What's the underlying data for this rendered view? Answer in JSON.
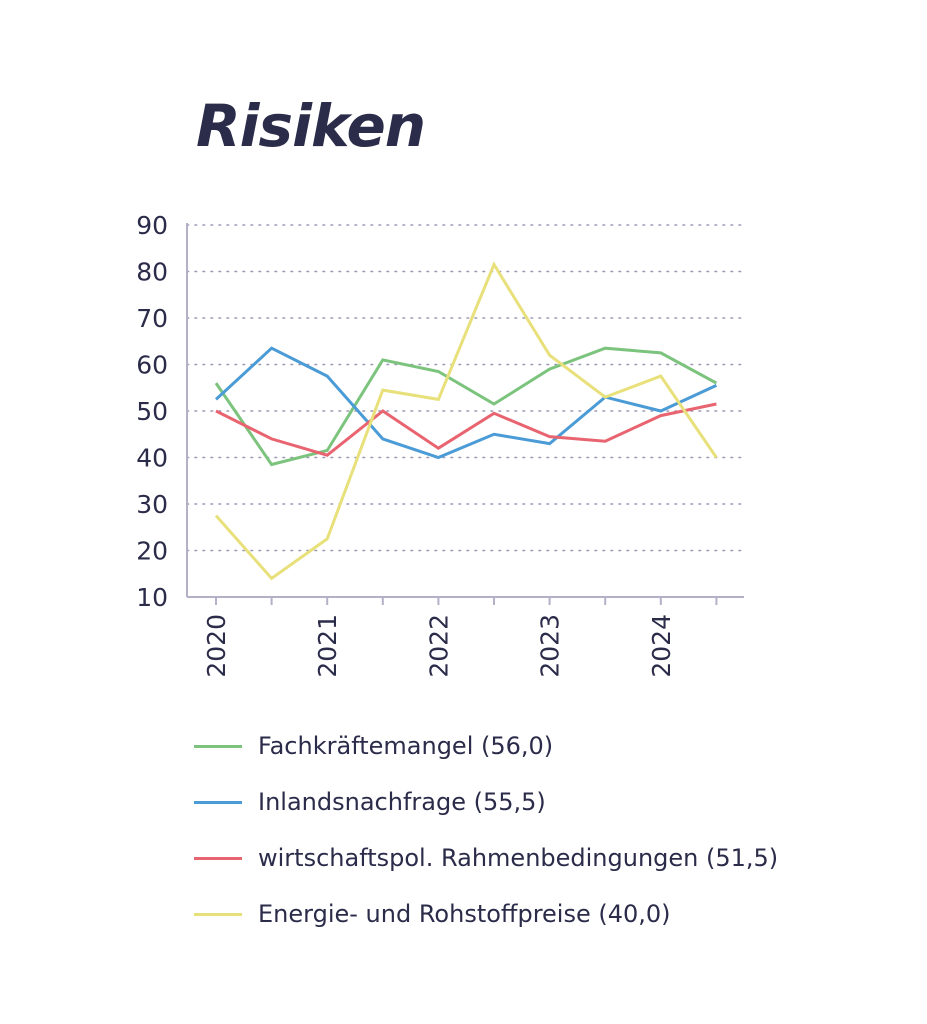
{
  "chart_data": {
    "type": "line",
    "title": "Risiken",
    "ylim": [
      10,
      90
    ],
    "yticks": [
      "10",
      "20",
      "30",
      "40",
      "50",
      "60",
      "70",
      "80",
      "90"
    ],
    "x": [
      "2020",
      "2020-2",
      "2021",
      "2021-2",
      "2022",
      "2022-2",
      "2023",
      "2023-2",
      "2024",
      "2024-2"
    ],
    "xtick_labels": [
      "2020",
      "2021",
      "2022",
      "2023",
      "2024"
    ],
    "grid": true,
    "legend_position": "bottom",
    "series": [
      {
        "name": "Fachkräftemangel (56,0)",
        "color": "#7cc47d",
        "values": [
          56.0,
          38.5,
          41.5,
          61.0,
          58.5,
          51.5,
          59.0,
          63.5,
          62.5,
          56.0
        ]
      },
      {
        "name": "Inlandsnachfrage (55,5)",
        "color": "#4a9bd6",
        "values": [
          52.5,
          63.5,
          57.5,
          44.0,
          40.0,
          45.0,
          43.0,
          53.0,
          50.0,
          55.5
        ]
      },
      {
        "name": "wirtschaftspol. Rahmenbedingungen (51,5)",
        "color": "#e86470",
        "values": [
          50.0,
          44.0,
          40.5,
          50.0,
          42.0,
          49.5,
          44.5,
          43.5,
          49.0,
          51.5
        ]
      },
      {
        "name": "Energie- und Rohstoffpreise (40,0)",
        "color": "#e8e07a",
        "values": [
          27.5,
          14.0,
          22.5,
          54.5,
          52.5,
          81.5,
          62.0,
          53.0,
          57.5,
          40.0
        ]
      }
    ]
  }
}
